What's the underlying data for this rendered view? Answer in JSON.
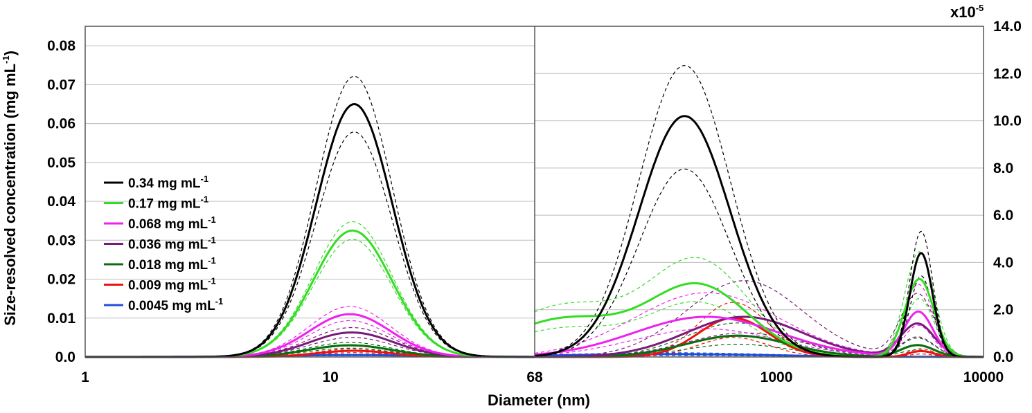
{
  "chart_data": {
    "type": "line",
    "xlabel": "Diameter (nm)",
    "ylabel_main": "Size-resolved concentration (mg mL",
    "ylabel_sup": "-1",
    "ylabel_close": ")",
    "x_scale": "log",
    "x_ticks": [
      1,
      10,
      68,
      1000,
      10000
    ],
    "x_tick_labels": [
      "1",
      "10",
      "68",
      "1000",
      "10000"
    ],
    "axis_break_at": 68,
    "left_panel": {
      "xlim": [
        1,
        68
      ],
      "ylim": [
        0,
        0.085
      ],
      "y_ticks": [
        0.0,
        0.01,
        0.02,
        0.03,
        0.04,
        0.05,
        0.06,
        0.07,
        0.08
      ],
      "y_tick_labels": [
        "0.0",
        "0.01",
        "0.02",
        "0.03",
        "0.04",
        "0.05",
        "0.06",
        "0.07",
        "0.08"
      ]
    },
    "right_panel": {
      "xlim": [
        68,
        10000
      ],
      "ylim": [
        0,
        14
      ],
      "y_multiplier_base": "x10",
      "y_multiplier_exp": "-5",
      "y_ticks": [
        0,
        2,
        4,
        6,
        8,
        10,
        12,
        14
      ],
      "y_tick_labels": [
        "0.0",
        "2.0",
        "4.0",
        "6.0",
        "8.0",
        "10.0",
        "12.0",
        "14.0"
      ]
    },
    "grid": true,
    "legend_position": "left",
    "legend_unit_base": " mg mL",
    "legend_unit_exp": "-1",
    "series": [
      {
        "name": "0.34",
        "color": "#000000",
        "left_modes": [
          {
            "center": 12.5,
            "height": 0.065,
            "sigma": 0.155
          }
        ],
        "left_band": [
          0.89,
          1.11
        ],
        "right_modes": [
          {
            "center": 360,
            "height": 10.2,
            "sigma": 0.22
          },
          {
            "center": 5000,
            "height": 4.4,
            "sigma": 0.055
          }
        ],
        "right_band": [
          0.78,
          1.21
        ]
      },
      {
        "name": "0.17",
        "color": "#33dd22",
        "left_modes": [
          {
            "center": 12.3,
            "height": 0.0325,
            "sigma": 0.16
          }
        ],
        "left_band": [
          0.93,
          1.07
        ],
        "right_modes": [
          {
            "center": 95,
            "height": 1.6,
            "sigma": 0.28
          },
          {
            "center": 420,
            "height": 3.0,
            "sigma": 0.24
          },
          {
            "center": 4900,
            "height": 3.3,
            "sigma": 0.07
          }
        ],
        "right_band": [
          0.75,
          1.35
        ]
      },
      {
        "name": "0.068",
        "color": "#ee22ee",
        "left_modes": [
          {
            "center": 12.0,
            "height": 0.011,
            "sigma": 0.165
          }
        ],
        "left_band": [
          0.85,
          1.18
        ],
        "right_modes": [
          {
            "center": 460,
            "height": 1.7,
            "sigma": 0.35
          },
          {
            "center": 4850,
            "height": 1.9,
            "sigma": 0.07
          }
        ],
        "right_band": [
          0.7,
          1.6
        ]
      },
      {
        "name": "0.036",
        "color": "#7a1a7a",
        "left_modes": [
          {
            "center": 12.2,
            "height": 0.0063,
            "sigma": 0.17
          }
        ],
        "left_band": [
          0.8,
          1.2
        ],
        "right_modes": [
          {
            "center": 700,
            "height": 1.7,
            "sigma": 0.28
          },
          {
            "center": 4800,
            "height": 1.4,
            "sigma": 0.08
          }
        ],
        "right_band": [
          0.6,
          1.9
        ]
      },
      {
        "name": "0.018",
        "color": "#0a6e0a",
        "left_modes": [
          {
            "center": 12.0,
            "height": 0.003,
            "sigma": 0.17
          }
        ],
        "left_band": [
          0.75,
          1.25
        ],
        "right_modes": [
          {
            "center": 650,
            "height": 0.9,
            "sigma": 0.25
          },
          {
            "center": 4800,
            "height": 0.5,
            "sigma": 0.08
          }
        ],
        "right_band": [
          0.6,
          1.6
        ]
      },
      {
        "name": "0.009",
        "color": "#ee1111",
        "left_modes": [
          {
            "center": 12.5,
            "height": 0.0016,
            "sigma": 0.15
          }
        ],
        "left_band": [
          0.7,
          1.3
        ],
        "right_modes": [
          {
            "center": 620,
            "height": 1.65,
            "sigma": 0.17
          },
          {
            "center": 5000,
            "height": 0.25,
            "sigma": 0.06
          }
        ],
        "right_band": [
          0.5,
          1.4
        ]
      },
      {
        "name": "0.0045",
        "color": "#1f4fd8",
        "left_modes": [
          {
            "center": 12.0,
            "height": 0.0005,
            "sigma": 0.3
          }
        ],
        "left_band": [
          0.6,
          1.4
        ],
        "right_modes": [
          {
            "center": 300,
            "height": 0.12,
            "sigma": 0.5
          }
        ],
        "right_band": [
          0.5,
          1.5
        ]
      }
    ]
  },
  "teal_series": {
    "color": "#1a8a8a",
    "left_modes": [
      {
        "center": 12.0,
        "height": 0.003,
        "sigma": 0.17
      }
    ],
    "right_modes": [
      {
        "center": 650,
        "height": 0.9,
        "sigma": 0.25
      },
      {
        "center": 4800,
        "height": 0.5,
        "sigma": 0.08
      }
    ]
  }
}
